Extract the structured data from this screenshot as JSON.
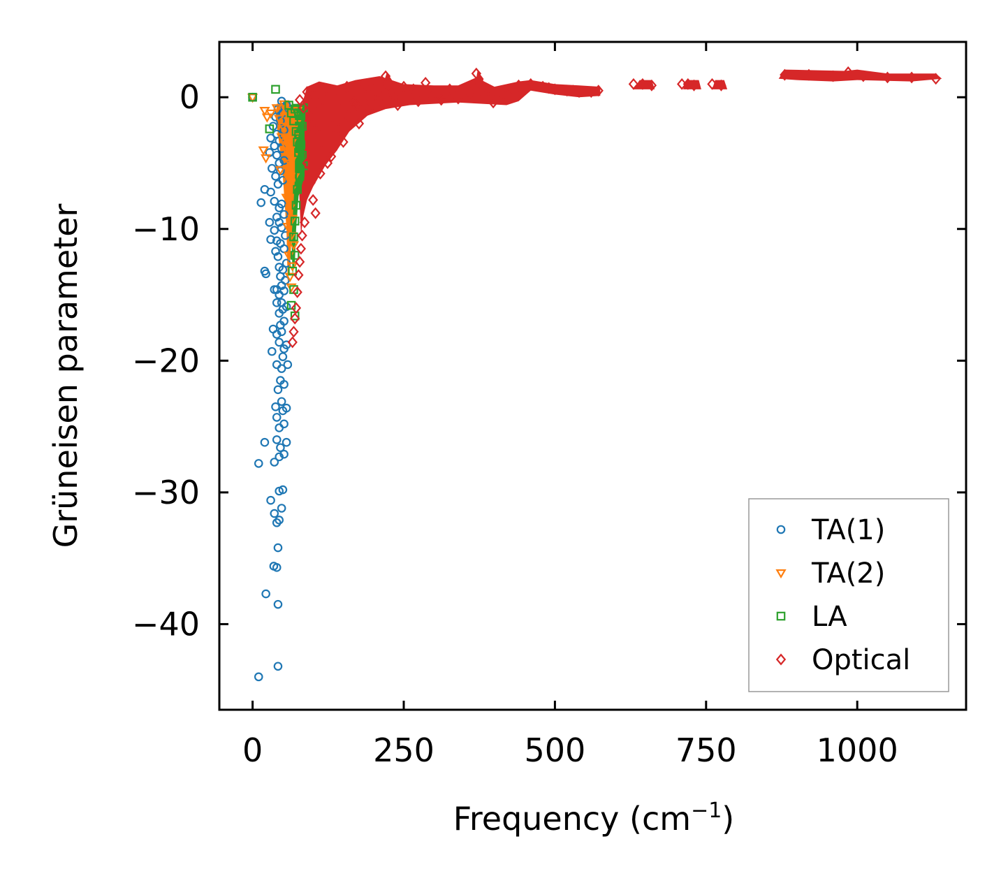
{
  "chart_data": {
    "type": "scatter",
    "title": "",
    "xlabel": "Frequency (cm",
    "xlabel_sup": "−1",
    "xlabel_end": ")",
    "ylabel": "Grüneisen parameter",
    "xlim": [
      -55,
      1180
    ],
    "ylim": [
      -46.5,
      4.2
    ],
    "xticks": [
      0,
      250,
      500,
      750,
      1000
    ],
    "xtick_labels": [
      "0",
      "250",
      "500",
      "750",
      "1000"
    ],
    "yticks": [
      0,
      -10,
      -20,
      -30,
      -40
    ],
    "ytick_labels": [
      "0",
      "−10",
      "−20",
      "−30",
      "−40"
    ],
    "grid": false,
    "legend_position": "lower-right",
    "series": [
      {
        "name": "TA(1)",
        "marker": "circle",
        "color": "#1f77b4",
        "points": [
          [
            0,
            0
          ],
          [
            10,
            -44
          ],
          [
            42,
            -43.2
          ],
          [
            42,
            -38.5
          ],
          [
            22,
            -37.7
          ],
          [
            35,
            -35.6
          ],
          [
            40,
            -35.7
          ],
          [
            42,
            -34.2
          ],
          [
            40,
            -32.3
          ],
          [
            44,
            -32.1
          ],
          [
            36,
            -31.6
          ],
          [
            48,
            -31.2
          ],
          [
            30,
            -30.6
          ],
          [
            44,
            -29.9
          ],
          [
            50,
            -29.8
          ],
          [
            10,
            -27.8
          ],
          [
            36,
            -27.7
          ],
          [
            44,
            -27.3
          ],
          [
            52,
            -27.1
          ],
          [
            20,
            -26.2
          ],
          [
            46,
            -26.6
          ],
          [
            56,
            -26.2
          ],
          [
            40,
            -26.0
          ],
          [
            44,
            -25.1
          ],
          [
            52,
            -24.8
          ],
          [
            40,
            -24.3
          ],
          [
            50,
            -23.8
          ],
          [
            56,
            -23.6
          ],
          [
            38,
            -23.5
          ],
          [
            48,
            -23.1
          ],
          [
            42,
            -22.2
          ],
          [
            52,
            -21.8
          ],
          [
            46,
            -21.5
          ],
          [
            48,
            -20.6
          ],
          [
            58,
            -20.3
          ],
          [
            40,
            -20.3
          ],
          [
            50,
            -19.7
          ],
          [
            52,
            -19.1
          ],
          [
            32,
            -19.3
          ],
          [
            44,
            -18.6
          ],
          [
            56,
            -18.8
          ],
          [
            40,
            -18.0
          ],
          [
            48,
            -17.8
          ],
          [
            46,
            -17.3
          ],
          [
            34,
            -17.6
          ],
          [
            52,
            -17.0
          ],
          [
            44,
            -16.4
          ],
          [
            50,
            -16.1
          ],
          [
            48,
            -15.6
          ],
          [
            56,
            -15.9
          ],
          [
            40,
            -15.6
          ],
          [
            44,
            -15.0
          ],
          [
            52,
            -14.7
          ],
          [
            40,
            -14.6
          ],
          [
            48,
            -14.3
          ],
          [
            36,
            -14.6
          ],
          [
            54,
            -13.9
          ],
          [
            46,
            -13.6
          ],
          [
            20,
            -13.2
          ],
          [
            22,
            -13.4
          ],
          [
            50,
            -13.1
          ],
          [
            44,
            -12.9
          ],
          [
            56,
            -12.6
          ],
          [
            42,
            -12.1
          ],
          [
            38,
            -11.7
          ],
          [
            52,
            -11.5
          ],
          [
            46,
            -11.1
          ],
          [
            40,
            -10.9
          ],
          [
            30,
            -10.8
          ],
          [
            54,
            -10.5
          ],
          [
            36,
            -10.1
          ],
          [
            48,
            -9.9
          ],
          [
            44,
            -9.5
          ],
          [
            28,
            -9.5
          ],
          [
            40,
            -9.1
          ],
          [
            52,
            -8.9
          ],
          [
            44,
            -8.4
          ],
          [
            48,
            -8.1
          ],
          [
            36,
            -7.9
          ],
          [
            14,
            -8.0
          ],
          [
            30,
            -7.2
          ],
          [
            20,
            -7.0
          ],
          [
            42,
            -6.6
          ],
          [
            50,
            -6.3
          ],
          [
            38,
            -6.0
          ],
          [
            46,
            -5.6
          ],
          [
            32,
            -5.4
          ],
          [
            44,
            -5.0
          ],
          [
            52,
            -4.8
          ],
          [
            40,
            -4.4
          ],
          [
            28,
            -4.2
          ],
          [
            48,
            -3.9
          ],
          [
            36,
            -3.7
          ],
          [
            44,
            -3.3
          ],
          [
            30,
            -3.1
          ],
          [
            40,
            -2.8
          ],
          [
            52,
            -2.5
          ],
          [
            34,
            -2.2
          ],
          [
            46,
            -1.8
          ],
          [
            38,
            -1.5
          ],
          [
            50,
            -1.2
          ],
          [
            42,
            -0.9
          ],
          [
            56,
            -0.6
          ],
          [
            48,
            -0.3
          ]
        ]
      },
      {
        "name": "TA(2)",
        "marker": "triangle-down",
        "color": "#ff7f0e",
        "points": [
          [
            0,
            0
          ],
          [
            20,
            -1.0
          ],
          [
            24,
            -1.5
          ],
          [
            30,
            -1.2
          ],
          [
            18,
            -4.0
          ],
          [
            22,
            -4.6
          ],
          [
            40,
            -0.8
          ],
          [
            44,
            -1.6
          ],
          [
            50,
            -2.2
          ],
          [
            52,
            -0.5
          ],
          [
            56,
            -1.0
          ],
          [
            60,
            -1.4
          ],
          [
            48,
            -3.0
          ],
          [
            54,
            -3.6
          ],
          [
            58,
            -4.2
          ],
          [
            62,
            -5.0
          ],
          [
            46,
            -5.5
          ],
          [
            60,
            -6.2
          ],
          [
            64,
            -7.0
          ],
          [
            56,
            -7.6
          ],
          [
            62,
            -8.4
          ],
          [
            66,
            -9.2
          ],
          [
            58,
            -9.8
          ],
          [
            64,
            -10.5
          ],
          [
            68,
            -11.2
          ],
          [
            60,
            -12.0
          ],
          [
            66,
            -12.8
          ],
          [
            62,
            -13.6
          ],
          [
            64,
            -14.4
          ],
          [
            70,
            -3.0
          ],
          [
            72,
            -2.0
          ],
          [
            74,
            -1.0
          ],
          [
            70,
            -6.0
          ],
          [
            68,
            -4.5
          ],
          [
            66,
            -2.5
          ]
        ]
      },
      {
        "name": "LA",
        "marker": "square",
        "color": "#2ca02c",
        "points": [
          [
            0,
            0
          ],
          [
            38,
            0.6
          ],
          [
            28,
            -2.4
          ],
          [
            60,
            -0.6
          ],
          [
            64,
            -1.2
          ],
          [
            68,
            -1.8
          ],
          [
            70,
            -0.9
          ],
          [
            72,
            -2.6
          ],
          [
            74,
            -3.4
          ],
          [
            76,
            -4.2
          ],
          [
            78,
            -5.0
          ],
          [
            80,
            -1.4
          ],
          [
            82,
            -2.2
          ],
          [
            84,
            -0.8
          ],
          [
            78,
            -6.0
          ],
          [
            74,
            -7.0
          ],
          [
            72,
            -8.2
          ],
          [
            70,
            -9.4
          ],
          [
            68,
            -10.6
          ],
          [
            70,
            -12.0
          ],
          [
            66,
            -13.2
          ],
          [
            68,
            -14.6
          ],
          [
            64,
            -15.8
          ],
          [
            70,
            -16.6
          ],
          [
            76,
            -2.8
          ],
          [
            80,
            -3.6
          ],
          [
            82,
            -4.4
          ],
          [
            84,
            -5.2
          ]
        ]
      },
      {
        "name": "Optical",
        "marker": "diamond",
        "color": "#d62728",
        "points": [
          [
            78,
            -0.2
          ],
          [
            84,
            -0.8
          ],
          [
            90,
            0.4
          ],
          [
            96,
            -1.5
          ],
          [
            100,
            0.2
          ],
          [
            104,
            -2.5
          ],
          [
            110,
            -0.5
          ],
          [
            116,
            -3.5
          ],
          [
            120,
            0.6
          ],
          [
            126,
            -1.8
          ],
          [
            130,
            -4.5
          ],
          [
            136,
            0.5
          ],
          [
            140,
            -2.6
          ],
          [
            146,
            -0.8
          ],
          [
            150,
            -3.4
          ],
          [
            156,
            0.8
          ],
          [
            160,
            -1.6
          ],
          [
            168,
            -0.4
          ],
          [
            176,
            -2.0
          ],
          [
            184,
            0.9
          ],
          [
            192,
            -0.9
          ],
          [
            200,
            0.5
          ],
          [
            210,
            -0.2
          ],
          [
            220,
            1.6
          ],
          [
            230,
            0.3
          ],
          [
            240,
            -0.6
          ],
          [
            250,
            0.8
          ],
          [
            262,
            0.2
          ],
          [
            274,
            -0.3
          ],
          [
            286,
            1.1
          ],
          [
            300,
            0.4
          ],
          [
            312,
            -0.2
          ],
          [
            326,
            0.6
          ],
          [
            340,
            -0.1
          ],
          [
            356,
            0.5
          ],
          [
            370,
            1.8
          ],
          [
            384,
            0.2
          ],
          [
            398,
            -0.4
          ],
          [
            412,
            0.3
          ],
          [
            426,
            0.6
          ],
          [
            440,
            0.9
          ],
          [
            460,
            1.0
          ],
          [
            480,
            0.8
          ],
          [
            500,
            0.6
          ],
          [
            520,
            0.5
          ],
          [
            540,
            0.4
          ],
          [
            560,
            0.4
          ],
          [
            572,
            0.5
          ],
          [
            630,
            1.0
          ],
          [
            645,
            1.0
          ],
          [
            660,
            0.9
          ],
          [
            710,
            1.0
          ],
          [
            720,
            1.0
          ],
          [
            730,
            0.9
          ],
          [
            760,
            1.0
          ],
          [
            775,
            0.9
          ],
          [
            880,
            1.7
          ],
          [
            920,
            1.7
          ],
          [
            960,
            1.6
          ],
          [
            985,
            1.9
          ],
          [
            1010,
            1.6
          ],
          [
            1050,
            1.5
          ],
          [
            1090,
            1.5
          ],
          [
            1130,
            1.4
          ],
          [
            90,
            -5.0
          ],
          [
            96,
            -6.5
          ],
          [
            100,
            -7.8
          ],
          [
            104,
            -8.8
          ],
          [
            86,
            -9.5
          ],
          [
            82,
            -10.5
          ],
          [
            80,
            -11.5
          ],
          [
            78,
            -12.5
          ],
          [
            76,
            -13.5
          ],
          [
            74,
            -14.8
          ],
          [
            72,
            -16.0
          ],
          [
            70,
            -16.8
          ],
          [
            68,
            -17.8
          ],
          [
            66,
            -18.6
          ],
          [
            112,
            -5.8
          ],
          [
            124,
            -5.0
          ],
          [
            132,
            -4.0
          ],
          [
            144,
            -2.4
          ],
          [
            158,
            -1.4
          ],
          [
            172,
            -0.6
          ],
          [
            188,
            0.1
          ],
          [
            206,
            0.4
          ],
          [
            236,
            0.2
          ],
          [
            266,
            0.6
          ],
          [
            296,
            0.0
          ],
          [
            328,
            0.4
          ],
          [
            360,
            0.3
          ],
          [
            392,
            0.1
          ],
          [
            420,
            0.2
          ],
          [
            452,
            0.7
          ],
          [
            490,
            0.7
          ],
          [
            530,
            0.5
          ]
        ]
      }
    ]
  }
}
